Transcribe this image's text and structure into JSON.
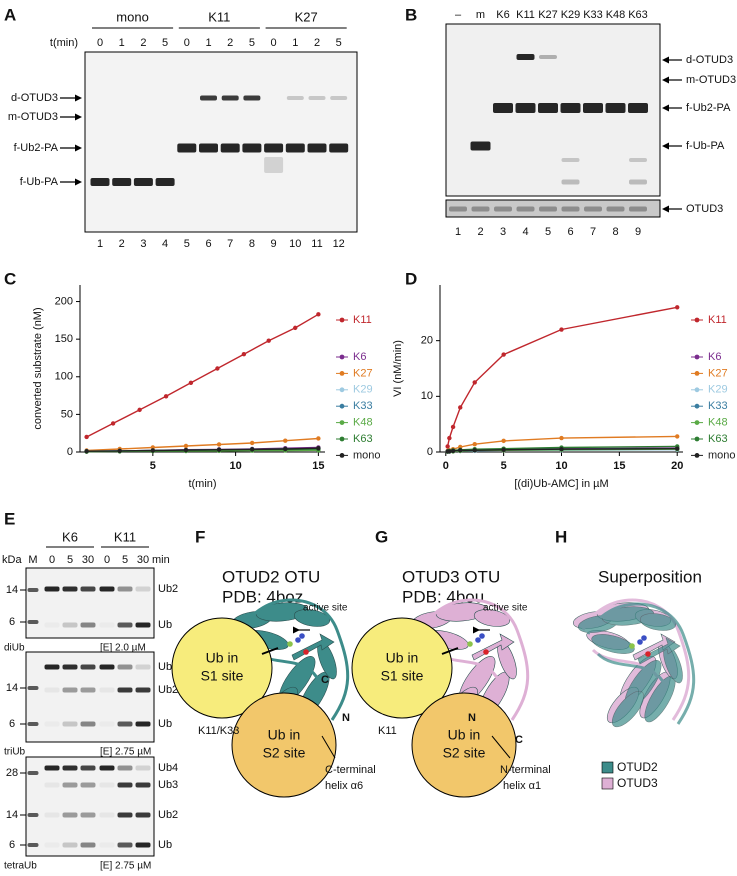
{
  "chart_data": [
    {
      "type": "line",
      "label": "C",
      "x_label": "t(min)",
      "y_label": "converted substrate (nM)",
      "xlim": [
        0.6,
        15.4
      ],
      "ylim": [
        0,
        222
      ],
      "xticks": [
        5,
        10,
        15
      ],
      "yticks": [
        0,
        50,
        100,
        150,
        200
      ],
      "series": [
        {
          "name": "K11",
          "color": "#c0272d",
          "x": [
            1,
            2.6,
            4.2,
            5.8,
            7.3,
            8.9,
            10.5,
            12,
            13.6,
            15
          ],
          "values": [
            20,
            38,
            56,
            74,
            92,
            111,
            130,
            148,
            165,
            183
          ]
        },
        {
          "name": "K6",
          "color": "#7b2d8e",
          "x": [
            1,
            3,
            5,
            7,
            9,
            11,
            13,
            15
          ],
          "values": [
            1,
            1.5,
            2,
            3,
            3.5,
            4,
            5,
            6
          ]
        },
        {
          "name": "K27",
          "color": "#e07b22",
          "x": [
            1,
            3,
            5,
            7,
            9,
            11,
            13,
            15
          ],
          "values": [
            2,
            4,
            6,
            8,
            10,
            12,
            15,
            18
          ]
        },
        {
          "name": "K29",
          "color": "#9ecae1",
          "x": [
            1,
            3,
            5,
            7,
            9,
            11,
            13,
            15
          ],
          "values": [
            1,
            1.3,
            1.6,
            2,
            2.3,
            2.6,
            3,
            3.3
          ]
        },
        {
          "name": "K33",
          "color": "#3b7ea1",
          "x": [
            1,
            3,
            5,
            7,
            9,
            11,
            13,
            15
          ],
          "values": [
            1,
            1.5,
            2,
            2.5,
            3,
            3.5,
            4,
            4.5
          ]
        },
        {
          "name": "K48",
          "color": "#5aaa46",
          "x": [
            1,
            3,
            5,
            7,
            9,
            11,
            13,
            15
          ],
          "values": [
            0.5,
            0.8,
            1,
            1.3,
            1.5,
            1.8,
            2,
            2.3
          ]
        },
        {
          "name": "K63",
          "color": "#2e7d32",
          "x": [
            1,
            3,
            5,
            7,
            9,
            11,
            13,
            15
          ],
          "values": [
            0.5,
            1,
            1.5,
            2,
            2.5,
            3,
            3.5,
            4
          ]
        },
        {
          "name": "mono",
          "color": "#222222",
          "x": [
            1,
            3,
            5,
            7,
            9,
            11,
            13,
            15
          ],
          "values": [
            1,
            1.5,
            2,
            2.5,
            3,
            3.5,
            4,
            5
          ]
        }
      ]
    },
    {
      "type": "line",
      "label": "D",
      "x_label": "[(di)Ub-AMC] in µM",
      "y_label": "VI (nM/min)",
      "xlim": [
        -0.5,
        20.5
      ],
      "ylim": [
        0,
        30
      ],
      "xticks": [
        0,
        5,
        10,
        15,
        20
      ],
      "yticks": [
        0,
        10,
        20
      ],
      "series": [
        {
          "name": "K11",
          "color": "#c0272d",
          "x": [
            0.16,
            0.31,
            0.63,
            1.25,
            2.5,
            5,
            10,
            20
          ],
          "values": [
            1,
            2.5,
            4.5,
            8,
            12.5,
            17.5,
            22,
            26
          ]
        },
        {
          "name": "K6",
          "color": "#7b2d8e",
          "x": [
            0.16,
            0.31,
            0.63,
            1.25,
            2.5,
            5,
            10,
            20
          ],
          "values": [
            0.1,
            0.1,
            0.2,
            0.3,
            0.4,
            0.5,
            0.6,
            0.7
          ]
        },
        {
          "name": "K27",
          "color": "#e07b22",
          "x": [
            0.16,
            0.31,
            0.63,
            1.25,
            2.5,
            5,
            10,
            20
          ],
          "values": [
            0.2,
            0.3,
            0.5,
            0.9,
            1.4,
            2,
            2.5,
            2.8
          ]
        },
        {
          "name": "K29",
          "color": "#9ecae1",
          "x": [
            0.16,
            0.31,
            0.63,
            1.25,
            2.5,
            5,
            10,
            20
          ],
          "values": [
            0.05,
            0.1,
            0.1,
            0.2,
            0.2,
            0.3,
            0.3,
            0.4
          ]
        },
        {
          "name": "K33",
          "color": "#3b7ea1",
          "x": [
            0.16,
            0.31,
            0.63,
            1.25,
            2.5,
            5,
            10,
            20
          ],
          "values": [
            0.1,
            0.1,
            0.2,
            0.2,
            0.3,
            0.4,
            0.5,
            0.6
          ]
        },
        {
          "name": "K48",
          "color": "#5aaa46",
          "x": [
            0.16,
            0.31,
            0.63,
            1.25,
            2.5,
            5,
            10,
            20
          ],
          "values": [
            0.05,
            0.1,
            0.1,
            0.2,
            0.3,
            0.3,
            0.4,
            0.5
          ]
        },
        {
          "name": "K63",
          "color": "#2e7d32",
          "x": [
            0.16,
            0.31,
            0.63,
            1.25,
            2.5,
            5,
            10,
            20
          ],
          "values": [
            0.1,
            0.2,
            0.3,
            0.4,
            0.5,
            0.6,
            0.8,
            1
          ]
        },
        {
          "name": "mono",
          "color": "#222222",
          "x": [
            0.16,
            0.31,
            0.63,
            1.25,
            2.5,
            5,
            10,
            20
          ],
          "values": [
            0.1,
            0.1,
            0.2,
            0.3,
            0.3,
            0.4,
            0.5,
            0.6
          ]
        }
      ]
    }
  ],
  "figure": {
    "A": {
      "label": "A",
      "groups": [
        "mono",
        "K11",
        "K27"
      ],
      "time_label": "t(min)",
      "times": [
        0,
        1,
        2,
        5,
        0,
        1,
        2,
        5,
        0,
        1,
        2,
        5
      ],
      "markers": [
        "d-OTUD3",
        "m-OTUD3",
        "f-Ub2-PA",
        "f-Ub-PA"
      ],
      "lanes": [
        1,
        2,
        3,
        4,
        5,
        6,
        7,
        8,
        9,
        10,
        11,
        12
      ]
    },
    "B": {
      "label": "B",
      "lane_names": [
        "–",
        "m",
        "K6",
        "K11",
        "K27",
        "K29",
        "K33",
        "K48",
        "K63"
      ],
      "markers": [
        "d-OTUD3",
        "m-OTUD3",
        "f-Ub2-PA",
        "f-Ub-PA"
      ],
      "strip_label": "OTUD3",
      "lanes": [
        1,
        2,
        3,
        4,
        5,
        6,
        7,
        8,
        9
      ]
    },
    "E": {
      "label": "E",
      "kda": "kDa",
      "marker_lane": "M",
      "groups": [
        "K6",
        "K11"
      ],
      "times": [
        0,
        5,
        30,
        0,
        5,
        30
      ],
      "time_unit": "min",
      "blots": [
        {
          "kda_marks": [
            14,
            6
          ],
          "bands": [
            "Ub2",
            "Ub"
          ],
          "substrate": "diUb",
          "enzyme": "[E] 2.0 µM"
        },
        {
          "kda_marks": [
            14,
            6
          ],
          "bands": [
            "Ub3",
            "Ub2",
            "Ub"
          ],
          "substrate": "triUb",
          "enzyme": "[E] 2.75 µM"
        },
        {
          "kda_marks": [
            28,
            14,
            6
          ],
          "bands": [
            "Ub4",
            "Ub3",
            "Ub2",
            "Ub"
          ],
          "substrate": "tetraUb",
          "enzyme": "[E] 2.75 µM"
        }
      ]
    },
    "F": {
      "label": "F",
      "title": [
        "OTUD2 OTU",
        "PDB: 4boz"
      ],
      "s1": [
        "Ub in",
        "S1 site"
      ],
      "s2": [
        "Ub in",
        "S2 site"
      ],
      "active": "active site",
      "c": "C",
      "n": "N",
      "linkage": "K11/K33",
      "helix": [
        "C-terminal",
        "helix α6"
      ]
    },
    "G": {
      "label": "G",
      "title": [
        "OTUD3 OTU",
        "PDB: 4bou"
      ],
      "s1": [
        "Ub in",
        "S1 site"
      ],
      "s2": [
        "Ub in",
        "S2 site"
      ],
      "active": "active site",
      "c": "C",
      "n": "N",
      "linkage": "K11",
      "helix": [
        "N-terminal",
        "helix α1"
      ]
    },
    "H": {
      "label": "H",
      "title": "Superposition",
      "legend": [
        "OTUD2",
        "OTUD3"
      ]
    }
  }
}
